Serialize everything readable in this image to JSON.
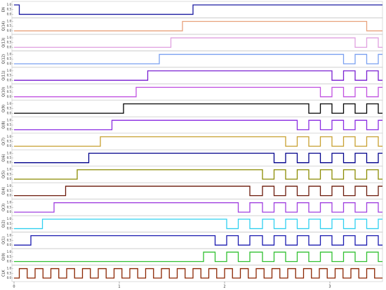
{
  "chart_data": {
    "type": "step",
    "xlim": [
      -0.02,
      3.5
    ],
    "xticks": [
      0,
      1,
      2,
      3
    ],
    "ylim": [
      -0.15,
      1.15
    ],
    "yticks": [
      {
        "value": 0,
        "label": "0.0"
      },
      {
        "value": 0.5,
        "label": "0.5"
      },
      {
        "value": 1,
        "label": "1.0"
      }
    ],
    "series": [
      {
        "name": "EN",
        "color": "#1a1aa0",
        "x": [
          0,
          0.05,
          1.7
        ],
        "values": [
          1,
          0,
          1
        ]
      },
      {
        "name": "Q(14)",
        "color": "#e8a27c",
        "x": [
          0,
          1.6,
          3.35
        ],
        "values": [
          0,
          1,
          0
        ]
      },
      {
        "name": "Q(13)",
        "color": "#e0a0e0",
        "x": [
          0,
          1.49,
          3.24,
          3.35,
          3.46
        ],
        "values": [
          0,
          1,
          0,
          1,
          0
        ]
      },
      {
        "name": "Q(12)",
        "color": "#7aa0f0",
        "x": [
          0,
          1.38,
          3.13,
          3.24,
          3.35,
          3.46
        ],
        "values": [
          0,
          1,
          0,
          1,
          0,
          1
        ]
      },
      {
        "name": "Q(11)",
        "color": "#7a1fd1",
        "x": [
          0,
          1.27,
          3.02,
          3.13,
          3.24,
          3.35,
          3.46
        ],
        "values": [
          0,
          1,
          0,
          1,
          0,
          1,
          0
        ]
      },
      {
        "name": "Q(10)",
        "color": "#c050e0",
        "x": [
          0,
          1.16,
          2.91,
          3.02,
          3.13,
          3.24,
          3.35,
          3.46
        ],
        "values": [
          0,
          1,
          0,
          1,
          0,
          1,
          0,
          1
        ]
      },
      {
        "name": "Q(9)",
        "color": "#000000",
        "x": [
          0,
          1.04,
          2.8,
          2.91,
          3.02,
          3.13,
          3.24,
          3.35,
          3.46
        ],
        "values": [
          0,
          1,
          0,
          1,
          0,
          1,
          0,
          1,
          0
        ]
      },
      {
        "name": "Q(8)",
        "color": "#8a2be2",
        "x": [
          0,
          0.93,
          2.69,
          2.8,
          2.91,
          3.02,
          3.13,
          3.24,
          3.35,
          3.46
        ],
        "values": [
          0,
          1,
          0,
          1,
          0,
          1,
          0,
          1,
          0,
          1
        ]
      },
      {
        "name": "Q(7)",
        "color": "#c8a030",
        "x": [
          0,
          0.82,
          2.58,
          2.69,
          2.8,
          2.91,
          3.02,
          3.13,
          3.24,
          3.35,
          3.46
        ],
        "values": [
          0,
          1,
          0,
          1,
          0,
          1,
          0,
          1,
          0,
          1,
          0
        ]
      },
      {
        "name": "Q(6)",
        "color": "#00008b",
        "x": [
          0,
          0.71,
          2.47,
          2.58,
          2.69,
          2.8,
          2.91,
          3.02,
          3.13,
          3.24,
          3.35,
          3.46
        ],
        "values": [
          0,
          1,
          0,
          1,
          0,
          1,
          0,
          1,
          0,
          1,
          0,
          1
        ]
      },
      {
        "name": "Q(5)",
        "color": "#8b8b00",
        "x": [
          0,
          0.6,
          2.36,
          2.47,
          2.58,
          2.69,
          2.8,
          2.91,
          3.02,
          3.13,
          3.24,
          3.35,
          3.46
        ],
        "values": [
          0,
          1,
          0,
          1,
          0,
          1,
          0,
          1,
          0,
          1,
          0,
          1,
          0
        ]
      },
      {
        "name": "Q(4)",
        "color": "#6b1a0a",
        "x": [
          0,
          0.49,
          2.24,
          2.36,
          2.47,
          2.58,
          2.69,
          2.8,
          2.91,
          3.02,
          3.13,
          3.24,
          3.35,
          3.46
        ],
        "values": [
          0,
          1,
          0,
          1,
          0,
          1,
          0,
          1,
          0,
          1,
          0,
          1,
          0,
          1
        ]
      },
      {
        "name": "Q(3)",
        "color": "#a040e0",
        "x": [
          0,
          0.38,
          2.13,
          2.24,
          2.36,
          2.47,
          2.58,
          2.69,
          2.8,
          2.91,
          3.02,
          3.13,
          3.24,
          3.35,
          3.46
        ],
        "values": [
          0,
          1,
          0,
          1,
          0,
          1,
          0,
          1,
          0,
          1,
          0,
          1,
          0,
          1,
          0
        ]
      },
      {
        "name": "Q(2)",
        "color": "#30d0f0",
        "x": [
          0,
          0.27,
          2.02,
          2.13,
          2.24,
          2.36,
          2.47,
          2.58,
          2.69,
          2.8,
          2.91,
          3.02,
          3.13,
          3.24,
          3.35,
          3.46
        ],
        "values": [
          0,
          1,
          0,
          1,
          0,
          1,
          0,
          1,
          0,
          1,
          0,
          1,
          0,
          1,
          0,
          1
        ]
      },
      {
        "name": "Q(1)",
        "color": "#1a1ab0",
        "x": [
          0,
          0.16,
          1.91,
          2.02,
          2.13,
          2.24,
          2.36,
          2.47,
          2.58,
          2.69,
          2.8,
          2.91,
          3.02,
          3.13,
          3.24,
          3.35,
          3.46
        ],
        "values": [
          0,
          1,
          0,
          1,
          0,
          1,
          0,
          1,
          0,
          1,
          0,
          1,
          0,
          1,
          0,
          1,
          0
        ]
      },
      {
        "name": "Q(0)",
        "color": "#30c030",
        "x": [
          0,
          1.8,
          1.91,
          2.02,
          2.13,
          2.24,
          2.36,
          2.47,
          2.58,
          2.69,
          2.8,
          2.91,
          3.02,
          3.13,
          3.24,
          3.35,
          3.46
        ],
        "values": [
          0,
          1,
          0,
          1,
          0,
          1,
          0,
          1,
          0,
          1,
          0,
          1,
          0,
          1,
          0,
          1,
          0
        ]
      },
      {
        "name": "CLK",
        "color": "#8b2500",
        "x": [
          0,
          0.05,
          0.125,
          0.2,
          0.275,
          0.35,
          0.425,
          0.5,
          0.575,
          0.65,
          0.725,
          0.8,
          0.875,
          0.95,
          1.025,
          1.1,
          1.175,
          1.25,
          1.325,
          1.4,
          1.475,
          1.55,
          1.625,
          1.7,
          1.775,
          1.85,
          1.925,
          2,
          2.075,
          2.15,
          2.225,
          2.3,
          2.375,
          2.45,
          2.525,
          2.6,
          2.675,
          2.75,
          2.825,
          2.9,
          2.975,
          3.05,
          3.125,
          3.2,
          3.275,
          3.35,
          3.425
        ],
        "values": [
          0,
          1,
          0,
          1,
          0,
          1,
          0,
          1,
          0,
          1,
          0,
          1,
          0,
          1,
          0,
          1,
          0,
          1,
          0,
          1,
          0,
          1,
          0,
          1,
          0,
          1,
          0,
          1,
          0,
          1,
          0,
          1,
          0,
          1,
          0,
          1,
          0,
          1,
          0,
          1,
          0,
          1,
          0,
          1,
          0,
          1,
          0
        ]
      }
    ]
  }
}
